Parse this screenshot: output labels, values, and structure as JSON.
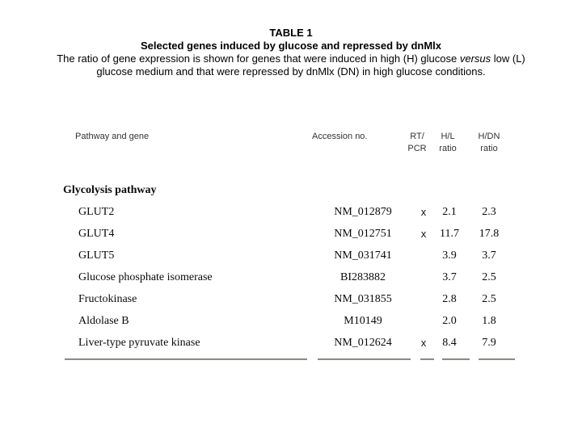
{
  "doc": {
    "title": "TABLE 1",
    "subtitle": "Selected genes induced by glucose and repressed by dnMlx",
    "caption": {
      "line1_pre": "The ratio of gene expression is shown for genes that were induced in high (H) glucose ",
      "versus": "versus",
      "line1_post": " low (L)",
      "line2": "glucose medium and that were repressed by dnMlx (DN) in high glucose conditions."
    }
  },
  "table": {
    "headers": {
      "pathway": "Pathway and gene",
      "accession": "Accession no.",
      "rtpcr_line1": "RT/",
      "rtpcr_line2": "PCR",
      "hl_line1": "H/L",
      "hl_line2": "ratio",
      "hdn_line1": "H/DN",
      "hdn_line2": "ratio"
    },
    "section": "Glycolysis pathway",
    "rows": [
      {
        "gene": "GLUT2",
        "accession": "NM_012879",
        "rtpcr": "x",
        "hl": "2.1",
        "hdn": "2.3"
      },
      {
        "gene": "GLUT4",
        "accession": "NM_012751",
        "rtpcr": "x",
        "hl": "11.7",
        "hdn": "17.8"
      },
      {
        "gene": "GLUT5",
        "accession": "NM_031741",
        "rtpcr": "",
        "hl": "3.9",
        "hdn": "3.7"
      },
      {
        "gene": "Glucose phosphate isomerase",
        "accession": "BI283882",
        "rtpcr": "",
        "hl": "3.7",
        "hdn": "2.5"
      },
      {
        "gene": "Fructokinase",
        "accession": "NM_031855",
        "rtpcr": "",
        "hl": "2.8",
        "hdn": "2.5"
      },
      {
        "gene": "Aldolase B",
        "accession": "M10149",
        "rtpcr": "",
        "hl": "2.0",
        "hdn": "1.8"
      },
      {
        "gene": "Liver-type pyruvate kinase",
        "accession": "NM_012624",
        "rtpcr": "x",
        "hl": "8.4",
        "hdn": "7.9"
      }
    ]
  },
  "colors": {
    "background": "#ffffff",
    "body_text": "#0a0a0a",
    "header_text": "#333333",
    "rule": "#94948c"
  }
}
